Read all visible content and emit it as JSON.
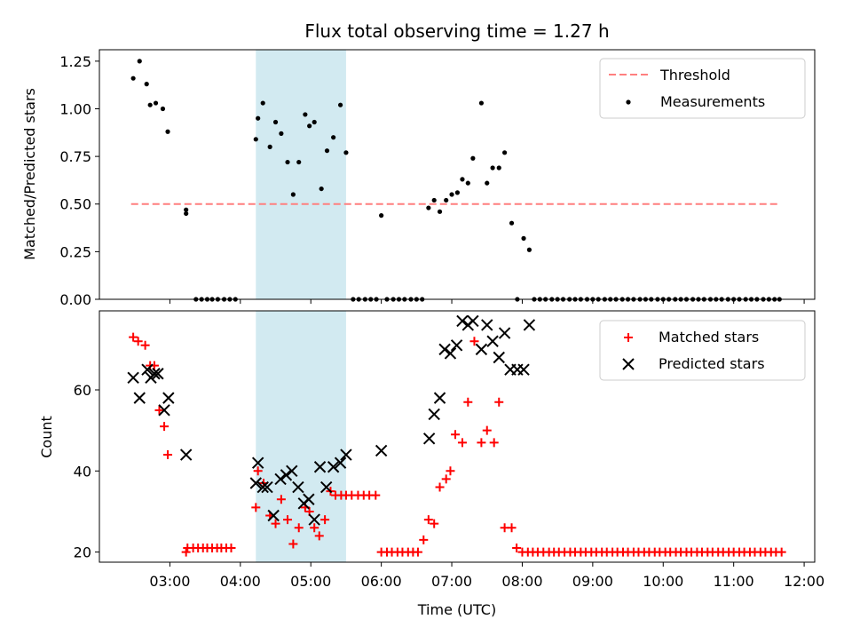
{
  "chart_data": {
    "title": "Flux total observing time = 1.27 h",
    "xlabel": "Time (UTC)",
    "x_unit": "hours UTC",
    "xlim": [
      2.0,
      12.15
    ],
    "x_ticks": [
      {
        "value": 3,
        "label": "03:00"
      },
      {
        "value": 4,
        "label": "04:00"
      },
      {
        "value": 5,
        "label": "05:00"
      },
      {
        "value": 6,
        "label": "06:00"
      },
      {
        "value": 7,
        "label": "07:00"
      },
      {
        "value": 8,
        "label": "08:00"
      },
      {
        "value": 9,
        "label": "09:00"
      },
      {
        "value": 10,
        "label": "10:00"
      },
      {
        "value": 11,
        "label": "11:00"
      },
      {
        "value": 12,
        "label": "12:00"
      }
    ],
    "shaded_span": {
      "x_start": 4.22,
      "x_end": 5.5,
      "color": "#add8e6"
    },
    "panels": [
      {
        "type": "scatter",
        "ylabel": "Matched/Predicted stars",
        "ylim": [
          0,
          1.31
        ],
        "y_ticks": [
          {
            "value": 0,
            "label": "0.00"
          },
          {
            "value": 0.25,
            "label": "0.25"
          },
          {
            "value": 0.5,
            "label": "0.50"
          },
          {
            "value": 0.75,
            "label": "0.75"
          },
          {
            "value": 1.0,
            "label": "1.00"
          },
          {
            "value": 1.25,
            "label": "1.25"
          }
        ],
        "legend_position": "top-right",
        "threshold": {
          "name": "Threshold",
          "y": 0.5,
          "x_start": 2.45,
          "x_end": 11.65,
          "color": "#ff7f7f"
        },
        "series": [
          {
            "name": "Measurements",
            "marker": "dot",
            "color": "#000000",
            "x": [
              2.48,
              2.57,
              2.67,
              2.72,
              2.8,
              2.9,
              2.97,
              3.23,
              3.23,
              3.37,
              3.45,
              3.53,
              3.6,
              3.68,
              3.77,
              3.85,
              3.93,
              4.22,
              4.25,
              4.32,
              4.42,
              4.5,
              4.58,
              4.67,
              4.75,
              4.83,
              4.92,
              4.98,
              5.05,
              5.15,
              5.23,
              5.32,
              5.42,
              5.5,
              5.6,
              5.68,
              5.77,
              5.85,
              5.93,
              6.0,
              6.08,
              6.17,
              6.25,
              6.33,
              6.42,
              6.5,
              6.58,
              6.67,
              6.75,
              6.83,
              6.92,
              7.0,
              7.08,
              7.15,
              7.23,
              7.3,
              7.42,
              7.5,
              7.58,
              7.67,
              7.75,
              7.85,
              7.93,
              8.02,
              8.1,
              8.17,
              8.25,
              8.33,
              8.42,
              8.5,
              8.58,
              8.67,
              8.75,
              8.83,
              8.92,
              9.0,
              9.08,
              9.17,
              9.25,
              9.33,
              9.42,
              9.5,
              9.58,
              9.67,
              9.75,
              9.83,
              9.92,
              10.0,
              10.08,
              10.17,
              10.25,
              10.33,
              10.42,
              10.5,
              10.58,
              10.67,
              10.75,
              10.83,
              10.92,
              11.0,
              11.08,
              11.17,
              11.25,
              11.33,
              11.42,
              11.5,
              11.58,
              11.65
            ],
            "y": [
              1.16,
              1.25,
              1.13,
              1.02,
              1.03,
              1.0,
              0.88,
              0.47,
              0.45,
              0,
              0,
              0,
              0,
              0,
              0,
              0,
              0,
              0.84,
              0.95,
              1.03,
              0.8,
              0.93,
              0.87,
              0.72,
              0.55,
              0.72,
              0.97,
              0.91,
              0.93,
              0.58,
              0.78,
              0.85,
              1.02,
              0.77,
              0,
              0,
              0,
              0,
              0,
              0.44,
              0,
              0,
              0,
              0,
              0,
              0,
              0,
              0.48,
              0.52,
              0.46,
              0.52,
              0.55,
              0.56,
              0.63,
              0.61,
              0.74,
              1.03,
              0.61,
              0.69,
              0.69,
              0.77,
              0.4,
              0,
              0.32,
              0.26,
              0,
              0,
              0,
              0,
              0,
              0,
              0,
              0,
              0,
              0,
              0,
              0,
              0,
              0,
              0,
              0,
              0,
              0,
              0,
              0,
              0,
              0,
              0,
              0,
              0,
              0,
              0,
              0,
              0,
              0,
              0,
              0,
              0,
              0,
              0,
              0,
              0,
              0,
              0,
              0,
              0,
              0,
              0
            ]
          }
        ]
      },
      {
        "type": "scatter",
        "ylabel": "Count",
        "ylim": [
          17.5,
          79.5
        ],
        "y_ticks": [
          {
            "value": 20,
            "label": "20"
          },
          {
            "value": 40,
            "label": "40"
          },
          {
            "value": 60,
            "label": "60"
          }
        ],
        "legend_position": "top-right",
        "series": [
          {
            "name": "Matched stars",
            "marker": "plus",
            "color": "#ff0000",
            "x": [
              2.48,
              2.55,
              2.65,
              2.72,
              2.78,
              2.85,
              2.92,
              2.97,
              3.23,
              3.25,
              3.33,
              3.4,
              3.47,
              3.53,
              3.6,
              3.67,
              3.73,
              3.8,
              3.87,
              4.22,
              4.25,
              4.33,
              4.42,
              4.5,
              4.58,
              4.67,
              4.75,
              4.83,
              4.92,
              4.98,
              5.05,
              5.12,
              5.2,
              5.28,
              5.35,
              5.43,
              5.5,
              5.58,
              5.67,
              5.75,
              5.83,
              5.92,
              6.0,
              6.08,
              6.15,
              6.23,
              6.3,
              6.38,
              6.45,
              6.52,
              6.6,
              6.67,
              6.75,
              6.83,
              6.92,
              6.98,
              7.05,
              7.15,
              7.23,
              7.32,
              7.42,
              7.5,
              7.6,
              7.67,
              7.75,
              7.85,
              7.92,
              8.0,
              8.08,
              8.15,
              8.22,
              8.3,
              8.38,
              8.45,
              8.52,
              8.6,
              8.68,
              8.75,
              8.83,
              8.9,
              8.98,
              9.05,
              9.13,
              9.2,
              9.28,
              9.35,
              9.43,
              9.5,
              9.58,
              9.65,
              9.73,
              9.8,
              9.88,
              9.95,
              10.03,
              10.1,
              10.18,
              10.25,
              10.33,
              10.4,
              10.48,
              10.55,
              10.63,
              10.7,
              10.78,
              10.85,
              10.93,
              11.0,
              11.08,
              11.15,
              11.23,
              11.3,
              11.38,
              11.45,
              11.53,
              11.6,
              11.68
            ],
            "y": [
              73,
              72,
              71,
              66,
              66,
              55,
              51,
              44,
              20,
              21,
              21,
              21,
              21,
              21,
              21,
              21,
              21,
              21,
              21,
              31,
              40,
              37,
              29,
              27,
              33,
              28,
              22,
              26,
              31,
              30,
              26,
              24,
              28,
              35,
              34,
              34,
              34,
              34,
              34,
              34,
              34,
              34,
              20,
              20,
              20,
              20,
              20,
              20,
              20,
              20,
              23,
              28,
              27,
              36,
              38,
              40,
              49,
              47,
              57,
              72,
              47,
              50,
              47,
              57,
              26,
              26,
              21,
              20,
              20,
              20,
              20,
              20,
              20,
              20,
              20,
              20,
              20,
              20,
              20,
              20,
              20,
              20,
              20,
              20,
              20,
              20,
              20,
              20,
              20,
              20,
              20,
              20,
              20,
              20,
              20,
              20,
              20,
              20,
              20,
              20,
              20,
              20,
              20,
              20,
              20,
              20,
              20,
              20,
              20,
              20,
              20,
              20,
              20,
              20,
              20,
              20,
              20
            ]
          },
          {
            "name": "Predicted stars",
            "marker": "x",
            "color": "#000000",
            "x": [
              2.48,
              2.57,
              2.68,
              2.73,
              2.78,
              2.83,
              2.92,
              2.98,
              3.23,
              4.22,
              4.25,
              4.32,
              4.38,
              4.47,
              4.57,
              4.65,
              4.73,
              4.82,
              4.9,
              4.97,
              5.05,
              5.13,
              5.22,
              5.32,
              5.42,
              5.5,
              6.0,
              6.68,
              6.75,
              6.83,
              6.9,
              6.98,
              7.07,
              7.15,
              7.23,
              7.3,
              7.42,
              7.5,
              7.58,
              7.67,
              7.75,
              7.83,
              7.93,
              8.02,
              8.1
            ],
            "y": [
              63,
              58,
              65,
              63,
              64,
              64,
              55,
              58,
              44,
              37,
              42,
              36,
              36,
              29,
              38,
              39,
              40,
              36,
              32,
              33,
              28,
              41,
              36,
              41,
              42,
              44,
              45,
              48,
              54,
              58,
              70,
              69,
              71,
              77,
              76,
              77,
              70,
              76,
              72,
              68,
              74,
              65,
              65,
              65,
              76
            ]
          }
        ]
      }
    ]
  }
}
